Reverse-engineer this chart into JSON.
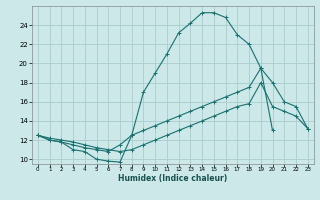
{
  "title": "",
  "xlabel": "Humidex (Indice chaleur)",
  "ylabel": "",
  "bg_color": "#cce8e8",
  "grid_color": "#aacccc",
  "line_color": "#1a7070",
  "xlim": [
    -0.5,
    23.5
  ],
  "ylim": [
    9.5,
    26.0
  ],
  "xticks": [
    0,
    1,
    2,
    3,
    4,
    5,
    6,
    7,
    8,
    9,
    10,
    11,
    12,
    13,
    14,
    15,
    16,
    17,
    18,
    19,
    20,
    21,
    22,
    23
  ],
  "yticks": [
    10,
    12,
    14,
    16,
    18,
    20,
    22,
    24
  ],
  "lines": [
    {
      "x": [
        0,
        1,
        2,
        3,
        4,
        5,
        6,
        7,
        8,
        9,
        10,
        11,
        12,
        13,
        14,
        15,
        16,
        17,
        18,
        19,
        20
      ],
      "y": [
        12.5,
        12.0,
        11.8,
        11.0,
        10.8,
        10.0,
        9.8,
        9.7,
        12.5,
        17.0,
        19.0,
        21.0,
        23.2,
        24.2,
        25.3,
        25.3,
        24.8,
        23.0,
        22.0,
        19.5,
        13.0
      ]
    },
    {
      "x": [
        0,
        1,
        2,
        3,
        4,
        5,
        6,
        7,
        8,
        9,
        10,
        11,
        12,
        13,
        14,
        15,
        16,
        17,
        18,
        19,
        20,
        21,
        22,
        23
      ],
      "y": [
        12.5,
        12.0,
        11.8,
        11.5,
        11.2,
        11.0,
        10.8,
        11.5,
        12.5,
        13.0,
        13.5,
        14.0,
        14.5,
        15.0,
        15.5,
        16.0,
        16.5,
        17.0,
        17.5,
        19.5,
        18.0,
        16.0,
        15.5,
        13.2
      ]
    },
    {
      "x": [
        0,
        1,
        2,
        3,
        4,
        5,
        6,
        7,
        8,
        9,
        10,
        11,
        12,
        13,
        14,
        15,
        16,
        17,
        18,
        19,
        20,
        21,
        22,
        23
      ],
      "y": [
        12.5,
        12.2,
        12.0,
        11.8,
        11.5,
        11.2,
        11.0,
        10.8,
        11.0,
        11.5,
        12.0,
        12.5,
        13.0,
        13.5,
        14.0,
        14.5,
        15.0,
        15.5,
        15.8,
        18.0,
        15.5,
        15.0,
        14.5,
        13.2
      ]
    }
  ]
}
